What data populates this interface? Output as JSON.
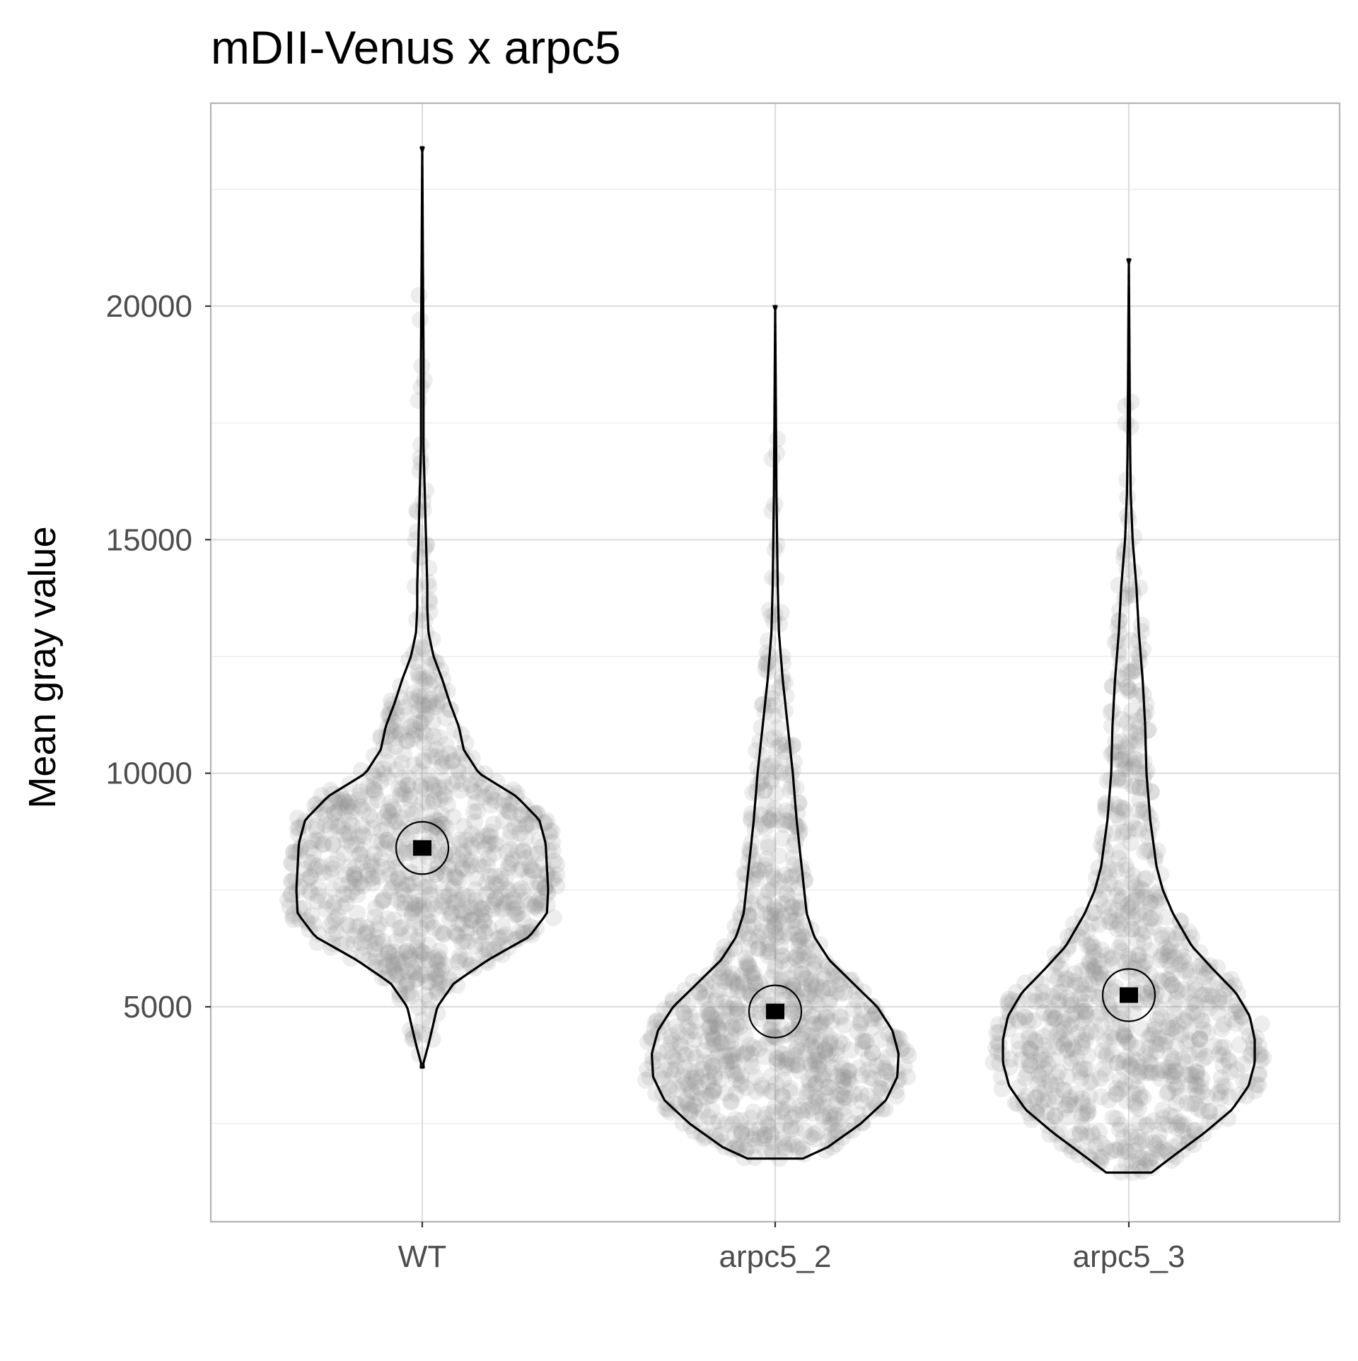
{
  "chart_data": {
    "type": "violin",
    "title": "mDII-Venus x arpc5",
    "xlabel": "",
    "ylabel": "Mean gray value",
    "categories": [
      "WT",
      "arpc5_2",
      "arpc5_3"
    ],
    "y_ticks": [
      5000,
      10000,
      15000,
      20000
    ],
    "y_tick_labels": [
      "5000",
      "10000",
      "15000",
      "20000"
    ],
    "ylim": [
      1200,
      24700
    ],
    "grid": true,
    "series": [
      {
        "category": "WT",
        "min": 3700,
        "max": 23400,
        "mean": 8400,
        "density_profile": [
          [
            3700,
            0.0
          ],
          [
            4200,
            0.05
          ],
          [
            5000,
            0.12
          ],
          [
            5500,
            0.25
          ],
          [
            6000,
            0.52
          ],
          [
            6500,
            0.85
          ],
          [
            7000,
            0.99
          ],
          [
            7500,
            1.0
          ],
          [
            8000,
            0.99
          ],
          [
            8500,
            0.98
          ],
          [
            9000,
            0.93
          ],
          [
            9500,
            0.75
          ],
          [
            10000,
            0.45
          ],
          [
            10500,
            0.33
          ],
          [
            11000,
            0.29
          ],
          [
            11500,
            0.22
          ],
          [
            12000,
            0.16
          ],
          [
            12500,
            0.09
          ],
          [
            13000,
            0.05
          ],
          [
            13500,
            0.04
          ],
          [
            14000,
            0.04
          ],
          [
            15000,
            0.03
          ],
          [
            16000,
            0.02
          ],
          [
            17000,
            0.01
          ],
          [
            19000,
            0.01
          ],
          [
            21000,
            0.005
          ],
          [
            23400,
            0.0
          ]
        ]
      },
      {
        "category": "arpc5_2",
        "min": 1750,
        "max": 20000,
        "mean": 4900,
        "density_profile": [
          [
            1750,
            0.22
          ],
          [
            2000,
            0.42
          ],
          [
            2500,
            0.68
          ],
          [
            3000,
            0.88
          ],
          [
            3500,
            0.97
          ],
          [
            4000,
            0.98
          ],
          [
            4500,
            0.93
          ],
          [
            5000,
            0.81
          ],
          [
            5500,
            0.62
          ],
          [
            6000,
            0.43
          ],
          [
            6500,
            0.31
          ],
          [
            7000,
            0.25
          ],
          [
            8000,
            0.21
          ],
          [
            9000,
            0.17
          ],
          [
            10000,
            0.14
          ],
          [
            11000,
            0.1
          ],
          [
            12000,
            0.06
          ],
          [
            13000,
            0.03
          ],
          [
            14000,
            0.02
          ],
          [
            15000,
            0.015
          ],
          [
            16000,
            0.01
          ],
          [
            18000,
            0.005
          ],
          [
            20000,
            0.0
          ]
        ]
      },
      {
        "category": "arpc5_3",
        "min": 1450,
        "max": 21000,
        "mean": 5250,
        "density_profile": [
          [
            1450,
            0.18
          ],
          [
            1800,
            0.35
          ],
          [
            2300,
            0.6
          ],
          [
            2800,
            0.82
          ],
          [
            3300,
            0.95
          ],
          [
            3800,
            1.0
          ],
          [
            4300,
            1.0
          ],
          [
            4800,
            0.96
          ],
          [
            5300,
            0.85
          ],
          [
            5800,
            0.67
          ],
          [
            6300,
            0.5
          ],
          [
            7000,
            0.35
          ],
          [
            7500,
            0.27
          ],
          [
            8000,
            0.22
          ],
          [
            9000,
            0.17
          ],
          [
            10000,
            0.14
          ],
          [
            11000,
            0.13
          ],
          [
            12000,
            0.11
          ],
          [
            13000,
            0.08
          ],
          [
            14000,
            0.06
          ],
          [
            15000,
            0.03
          ],
          [
            16000,
            0.015
          ],
          [
            17000,
            0.01
          ],
          [
            19000,
            0.005
          ],
          [
            21000,
            0.0
          ]
        ]
      }
    ]
  }
}
